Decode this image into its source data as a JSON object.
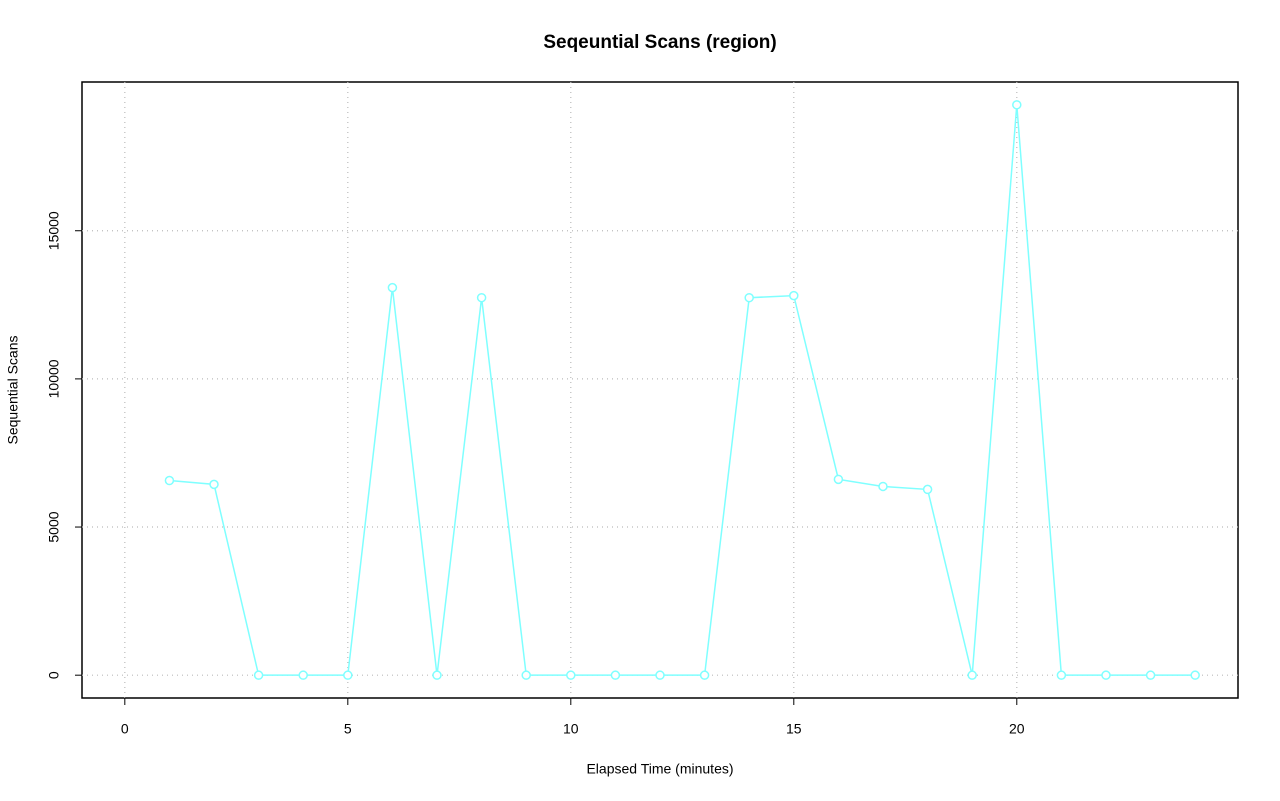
{
  "chart_data": {
    "type": "line",
    "title": "Seqeuntial Scans (region)",
    "x_label": "Elapsed Time (minutes)",
    "y_label": "Sequential Scans",
    "x": [
      1,
      2,
      3,
      4,
      5,
      6,
      7,
      8,
      9,
      10,
      11,
      12,
      13,
      14,
      15,
      16,
      17,
      18,
      19,
      20,
      21,
      22,
      23,
      24
    ],
    "series": [
      {
        "color": "#7fffff",
        "values": [
          6570,
          6440,
          0,
          0,
          0,
          13080,
          0,
          12740,
          0,
          0,
          0,
          0,
          0,
          12740,
          12810,
          6610,
          6370,
          6270,
          0,
          19250,
          0,
          0,
          0,
          0
        ]
      }
    ],
    "xlim": [
      -0.96,
      24.96
    ],
    "xticks": [
      0,
      5,
      10,
      15,
      20
    ],
    "ylim": [
      -770,
      20020
    ],
    "yticks": [
      0,
      5000,
      10000,
      15000
    ],
    "grid": true
  }
}
